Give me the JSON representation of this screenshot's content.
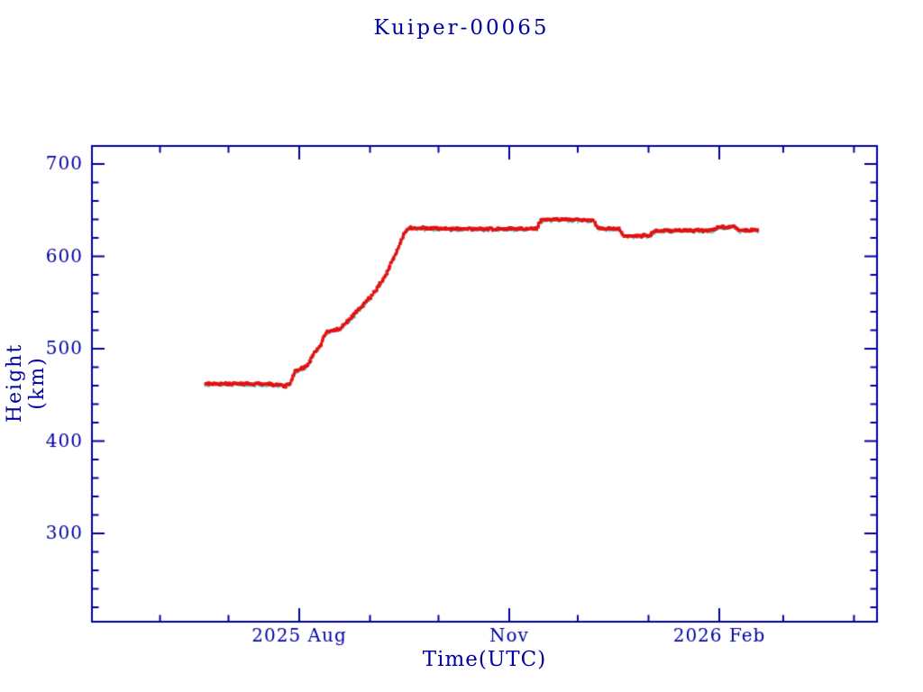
{
  "colors": {
    "axis": "#0000A0",
    "title_text": "#0000A0",
    "series_primary": "#E21212",
    "series_secondary": "#55D4D4",
    "background": "#FFFFFF"
  },
  "chart_data": {
    "type": "scatter",
    "title": "Kuiper-00065",
    "xlabel": "Time(UTC)",
    "ylabel": "Height (km)",
    "legend": "none",
    "grid": false,
    "x_axis": {
      "kind": "time",
      "range_start": "2025-05-02",
      "range_end": "2026-04-11",
      "ticks": [
        {
          "date": "2025-06-01",
          "major": false,
          "label": ""
        },
        {
          "date": "2025-07-01",
          "major": false,
          "label": ""
        },
        {
          "date": "2025-08-01",
          "major": true,
          "label": "2025 Aug"
        },
        {
          "date": "2025-09-01",
          "major": false,
          "label": ""
        },
        {
          "date": "2025-10-01",
          "major": false,
          "label": ""
        },
        {
          "date": "2025-11-01",
          "major": true,
          "label": "Nov"
        },
        {
          "date": "2025-12-01",
          "major": false,
          "label": ""
        },
        {
          "date": "2026-01-01",
          "major": false,
          "label": ""
        },
        {
          "date": "2026-02-01",
          "major": true,
          "label": "2026 Feb"
        },
        {
          "date": "2026-03-01",
          "major": false,
          "label": ""
        },
        {
          "date": "2026-04-01",
          "major": false,
          "label": ""
        }
      ]
    },
    "y_axis": {
      "unit": "km",
      "min": 205,
      "max": 719,
      "major_ticks": [
        300,
        400,
        500,
        600,
        700
      ],
      "minor_tick_step": 20,
      "minor_tick_min": 220,
      "minor_tick_max": 700
    },
    "series": [
      {
        "name": "height-primary",
        "color_key": "series_primary",
        "style": "dense-dots",
        "points": [
          [
            "2025-06-21",
            462
          ],
          [
            "2025-07-10",
            462
          ],
          [
            "2025-07-23",
            461
          ],
          [
            "2025-07-26",
            459.5
          ],
          [
            "2025-07-28",
            463
          ],
          [
            "2025-07-30",
            476
          ],
          [
            "2025-08-03",
            479
          ],
          [
            "2025-08-05",
            484
          ],
          [
            "2025-08-08",
            497
          ],
          [
            "2025-08-10",
            503
          ],
          [
            "2025-08-13",
            518
          ],
          [
            "2025-08-19",
            522
          ],
          [
            "2025-08-25",
            537
          ],
          [
            "2025-09-01",
            555
          ],
          [
            "2025-09-06",
            572
          ],
          [
            "2025-09-08",
            580
          ],
          [
            "2025-09-10",
            590
          ],
          [
            "2025-09-13",
            607
          ],
          [
            "2025-09-16",
            625
          ],
          [
            "2025-09-18",
            630.5
          ],
          [
            "2025-10-05",
            630
          ],
          [
            "2025-10-20",
            629.5
          ],
          [
            "2025-11-13",
            630
          ],
          [
            "2025-11-15",
            639.5
          ],
          [
            "2025-11-25",
            640
          ],
          [
            "2025-12-08",
            639
          ],
          [
            "2025-12-10",
            630.5
          ],
          [
            "2025-12-19",
            630
          ],
          [
            "2025-12-21",
            622.5
          ],
          [
            "2026-01-01",
            622
          ],
          [
            "2026-01-04",
            628
          ],
          [
            "2026-01-29",
            628
          ],
          [
            "2026-01-31",
            631.5
          ],
          [
            "2026-02-08",
            632
          ],
          [
            "2026-02-10",
            628
          ],
          [
            "2026-02-18",
            628.5
          ]
        ]
      },
      {
        "name": "height-secondary-shadow",
        "color_key": "series_secondary",
        "style": "sparse-dots-under-primary",
        "tracks": "height-primary"
      }
    ]
  }
}
